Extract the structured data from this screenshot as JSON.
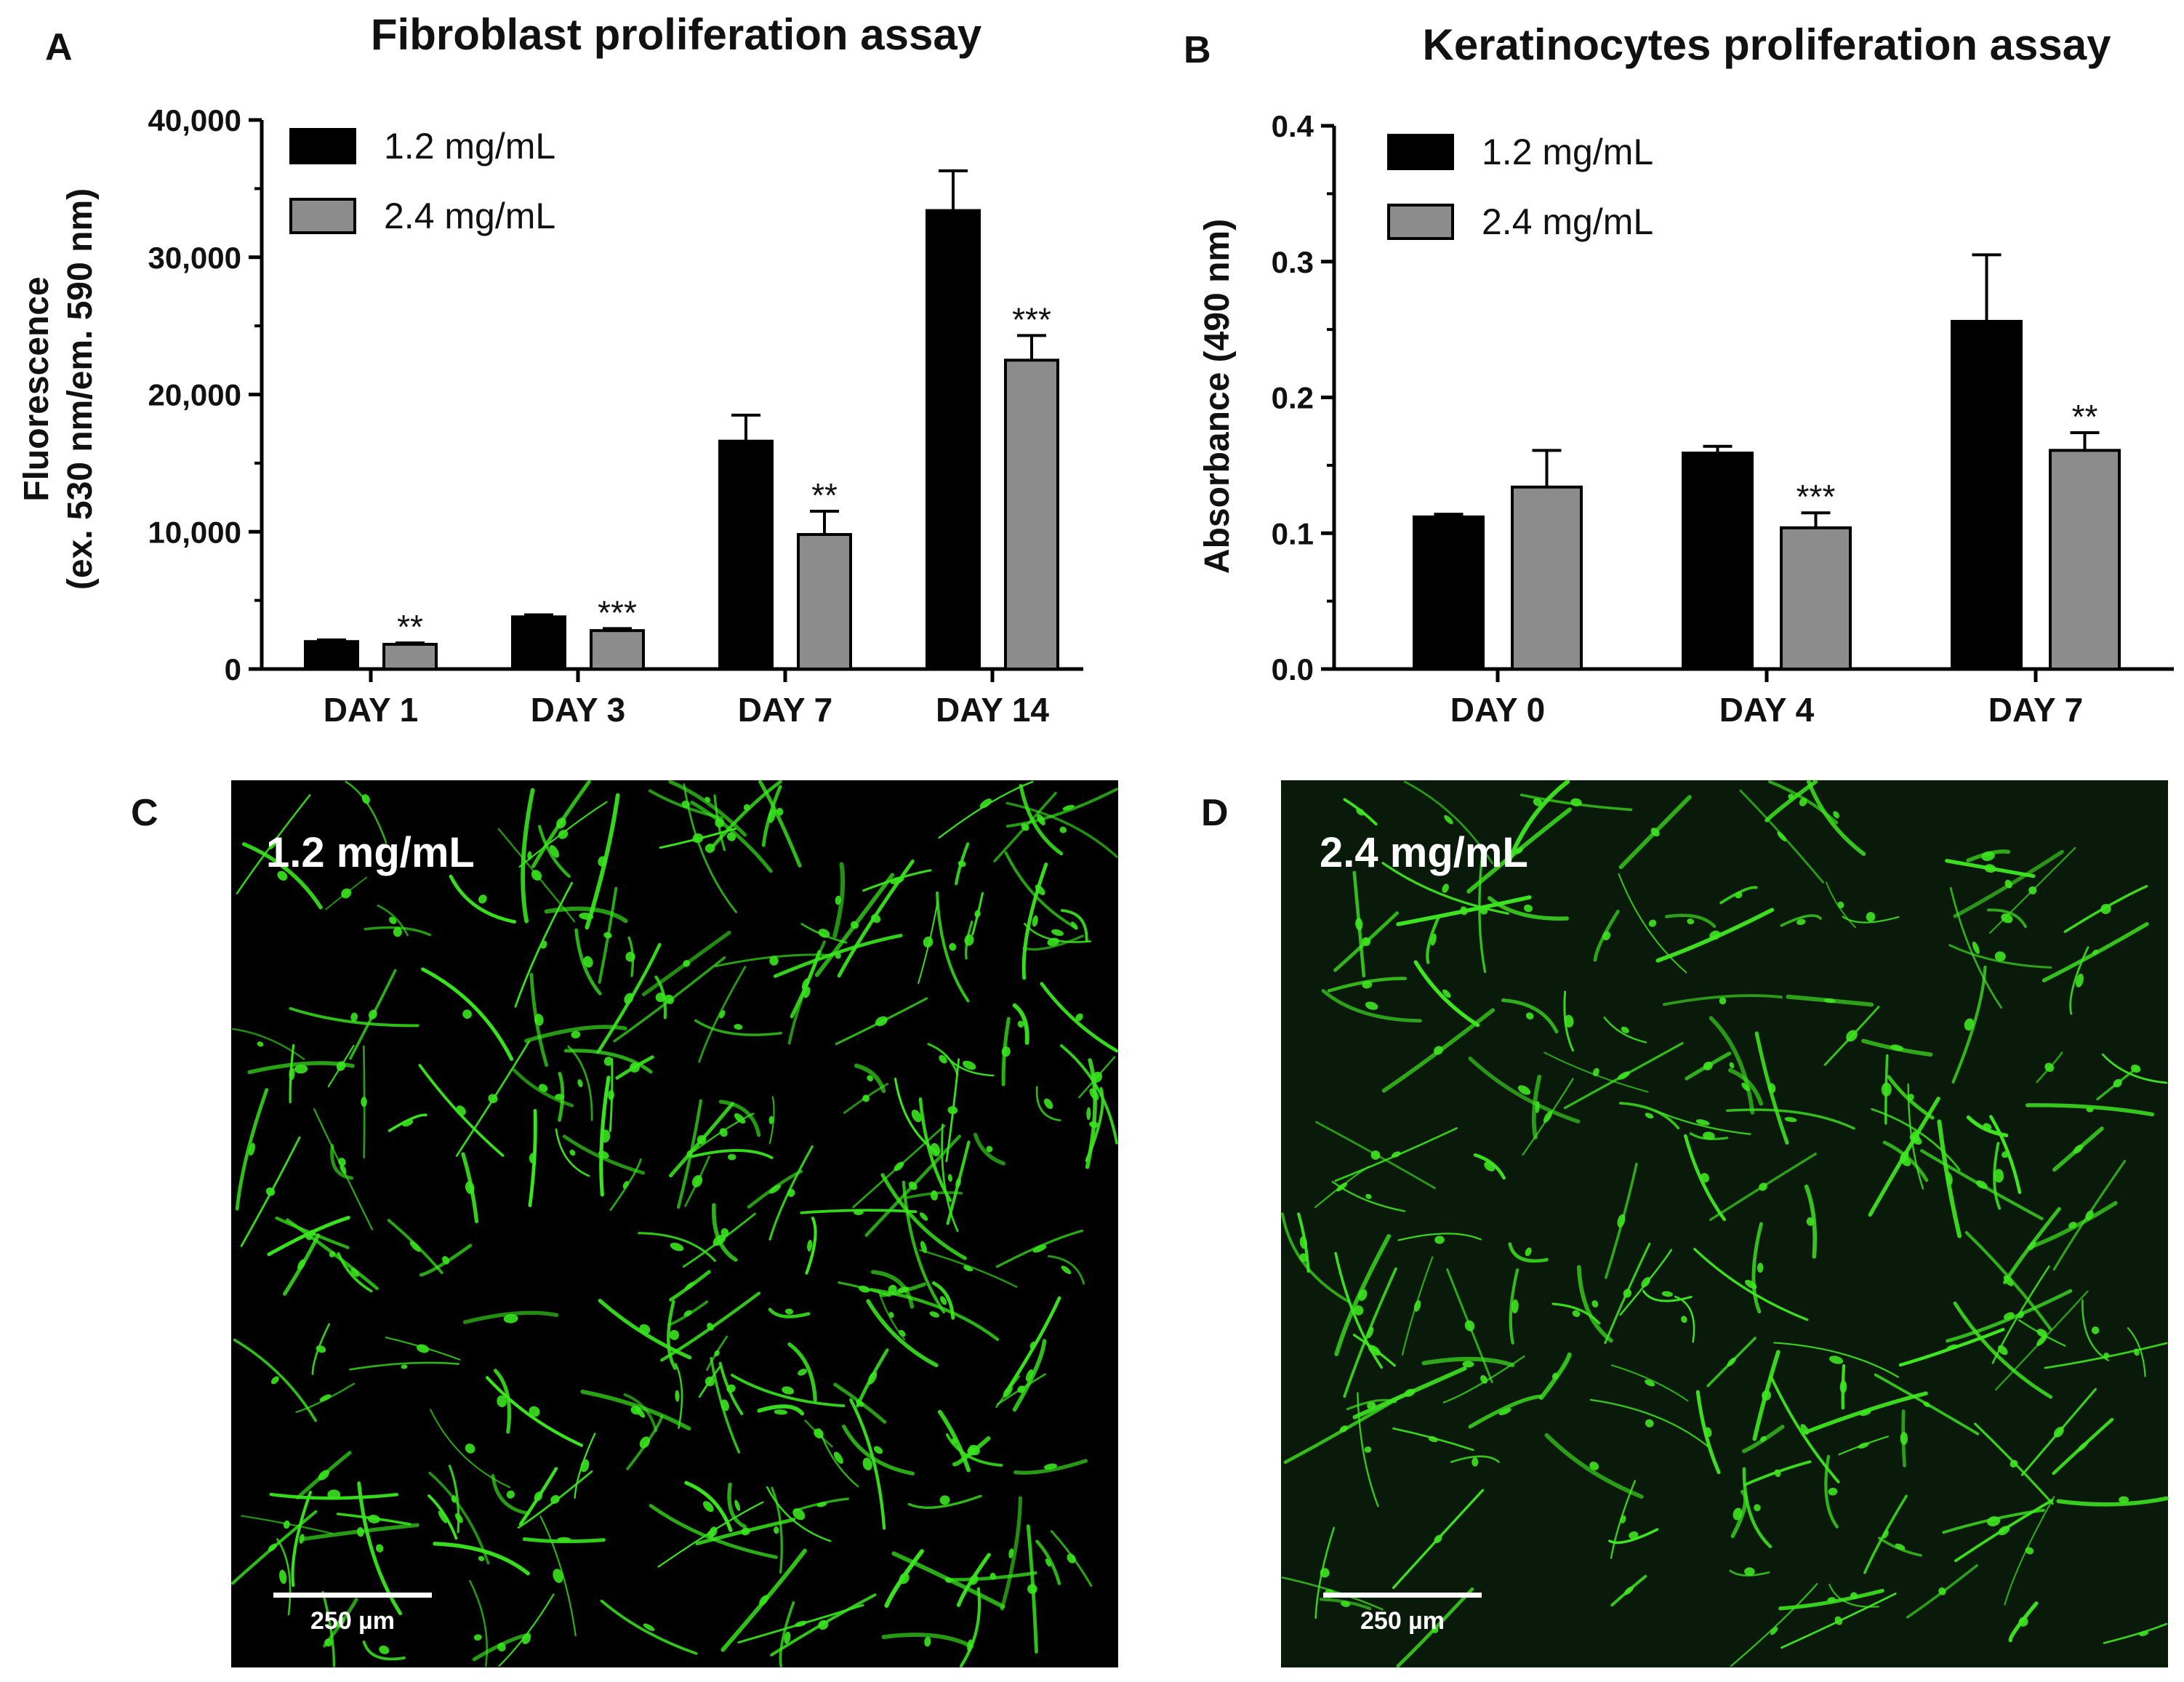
{
  "panels": {
    "a": "A",
    "b": "B",
    "c": "C",
    "d": "D"
  },
  "micrographs": [
    {
      "label": "1.2 mg/mL",
      "scale_bar": "250 µm",
      "background": "#000000",
      "cell_color": "#39e61e",
      "seed": 17,
      "cell_count": 230
    },
    {
      "label": "2.4 mg/mL",
      "scale_bar": "250 µm",
      "background": "#0a1a0a",
      "cell_color": "#3ee620",
      "seed": 91,
      "cell_count": 170
    }
  ],
  "chart_data": [
    {
      "type": "bar",
      "title": "Fibroblast proliferation assay",
      "ylabel_line1": "Fluorescence",
      "ylabel_line2": "(ex. 530 nm/em. 590 nm)",
      "xlabel": "",
      "categories": [
        "DAY 1",
        "DAY 3",
        "DAY 7",
        "DAY 14"
      ],
      "ylim": [
        0,
        40000
      ],
      "yticks": [
        0,
        10000,
        20000,
        30000,
        40000
      ],
      "ytick_labels": [
        "0",
        "10,000",
        "20,000",
        "30,000",
        "40,000"
      ],
      "legend_position": "top-left",
      "series": [
        {
          "name": "1.2 mg/mL",
          "color": "#000000",
          "values": [
            2000,
            3800,
            16600,
            33400
          ],
          "errors": [
            120,
            150,
            1900,
            2900
          ],
          "significance": [
            "",
            "",
            "",
            ""
          ]
        },
        {
          "name": "2.4 mg/mL",
          "color": "#8c8c8c",
          "values": [
            1800,
            2800,
            9800,
            22500
          ],
          "errors": [
            100,
            150,
            1700,
            1800
          ],
          "significance": [
            "**",
            "***",
            "**",
            "***"
          ]
        }
      ]
    },
    {
      "type": "bar",
      "title": "Keratinocytes proliferation assay",
      "ylabel_line1": "Absorbance (490 nm)",
      "ylabel_line2": "",
      "xlabel": "",
      "categories": [
        "DAY 0",
        "DAY 4",
        "DAY 7"
      ],
      "ylim": [
        0,
        0.4
      ],
      "yticks": [
        0,
        0.1,
        0.2,
        0.3,
        0.4
      ],
      "ytick_labels": [
        "0.0",
        "0.1",
        "0.2",
        "0.3",
        "0.4"
      ],
      "legend_position": "top-left",
      "series": [
        {
          "name": "1.2 mg/mL",
          "color": "#000000",
          "values": [
            0.112,
            0.159,
            0.256
          ],
          "errors": [
            0.002,
            0.005,
            0.049
          ],
          "significance": [
            "",
            "",
            ""
          ]
        },
        {
          "name": "2.4 mg/mL",
          "color": "#8c8c8c",
          "values": [
            0.134,
            0.104,
            0.161
          ],
          "errors": [
            0.027,
            0.011,
            0.013
          ],
          "significance": [
            "",
            "***",
            "**"
          ]
        }
      ]
    }
  ]
}
